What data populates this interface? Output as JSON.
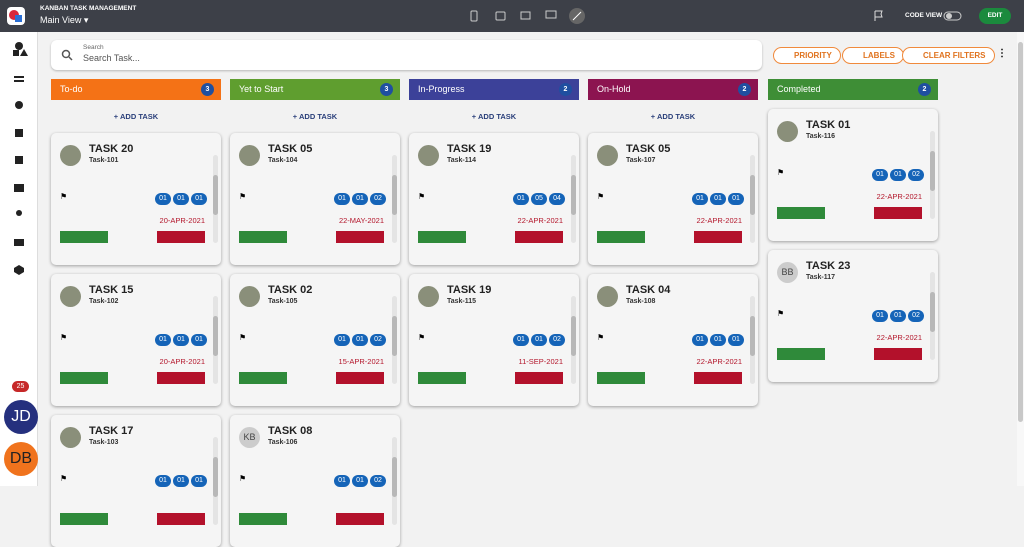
{
  "header": {
    "app_title": "KANBAN TASK MANAGEMENT",
    "view": "Main View",
    "code_view": "CODE VIEW",
    "edit": "EDIT"
  },
  "sidebar": {
    "badge": "25",
    "users": [
      "JD",
      "DB"
    ]
  },
  "search": {
    "label": "Search",
    "placeholder": "Search Task..."
  },
  "filters": [
    "PRIORITY",
    "LABELS",
    "CLEAR FILTERS"
  ],
  "columns": [
    {
      "title": "To-do",
      "count": 3,
      "color": "#f47216",
      "add": "ADD TASK",
      "cards": [
        {
          "title": "TASK 20",
          "id": "Task-101",
          "chips": [
            "01",
            "01",
            "01"
          ],
          "date": "20-APR-2021"
        },
        {
          "title": "TASK 15",
          "id": "Task-102",
          "chips": [
            "01",
            "01",
            "01"
          ],
          "date": "20-APR-2021"
        },
        {
          "title": "TASK 17",
          "id": "Task-103",
          "chips": [
            "01",
            "01",
            "01"
          ]
        }
      ]
    },
    {
      "title": "Yet to Start",
      "count": 3,
      "color": "#5f9e2f",
      "add": "ADD TASK",
      "cards": [
        {
          "title": "TASK 05",
          "id": "Task-104",
          "chips": [
            "01",
            "01",
            "02"
          ],
          "date": "22-MAY-2021"
        },
        {
          "title": "TASK 02",
          "id": "Task-105",
          "chips": [
            "01",
            "01",
            "02"
          ],
          "date": "15-APR-2021"
        },
        {
          "title": "TASK 08",
          "id": "Task-106",
          "initials": "KB",
          "chips": [
            "01",
            "01",
            "02"
          ]
        }
      ]
    },
    {
      "title": "In-Progress",
      "count": 2,
      "color": "#3c4199",
      "add": "ADD TASK",
      "cards": [
        {
          "title": "TASK 19",
          "id": "Task-114",
          "chips": [
            "01",
            "05",
            "04"
          ],
          "date": "22-APR-2021"
        },
        {
          "title": "TASK 19",
          "id": "Task-115",
          "chips": [
            "01",
            "01",
            "02"
          ],
          "date": "11-SEP-2021"
        }
      ]
    },
    {
      "title": "On-Hold",
      "count": 2,
      "color": "#8c1450",
      "add": "ADD TASK",
      "cards": [
        {
          "title": "TASK 05",
          "id": "Task-107",
          "chips": [
            "01",
            "01",
            "01"
          ],
          "date": "22-APR-2021"
        },
        {
          "title": "TASK 04",
          "id": "Task-108",
          "chips": [
            "01",
            "01",
            "01"
          ],
          "date": "22-APR-2021"
        }
      ]
    },
    {
      "title": "Completed",
      "count": 2,
      "color": "#3e8e36",
      "cards": [
        {
          "title": "TASK 01",
          "id": "Task-116",
          "chips": [
            "01",
            "01",
            "02"
          ],
          "date": "22-APR-2021"
        },
        {
          "title": "TASK 23",
          "id": "Task-117",
          "initials": "BB",
          "chips": [
            "01",
            "01",
            "02"
          ],
          "date": "22-APR-2021"
        }
      ]
    }
  ]
}
